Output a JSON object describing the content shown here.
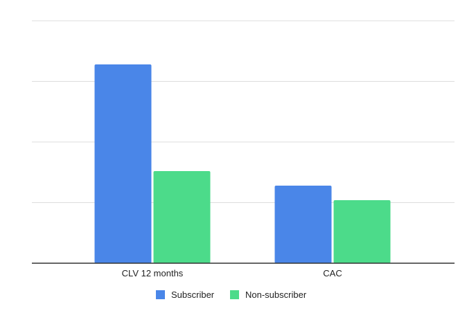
{
  "chart_data": {
    "type": "bar",
    "title": "",
    "xlabel": "",
    "ylabel": "",
    "categories": [
      "CLV 12 months",
      "CAC"
    ],
    "series": [
      {
        "name": "Subscriber",
        "values": [
          82,
          32
        ],
        "color": "#4A86E8"
      },
      {
        "name": "Non-subscriber",
        "values": [
          38,
          26
        ],
        "color": "#4CDB8A"
      }
    ],
    "ylim": [
      0,
      100
    ],
    "gridlines": [
      25,
      50,
      75,
      100
    ],
    "y_tick_labels_visible": false,
    "grid": true,
    "legend_position": "bottom",
    "colors": {
      "grid": "#dddddd",
      "axis": "#333333",
      "text": "#222222"
    }
  }
}
